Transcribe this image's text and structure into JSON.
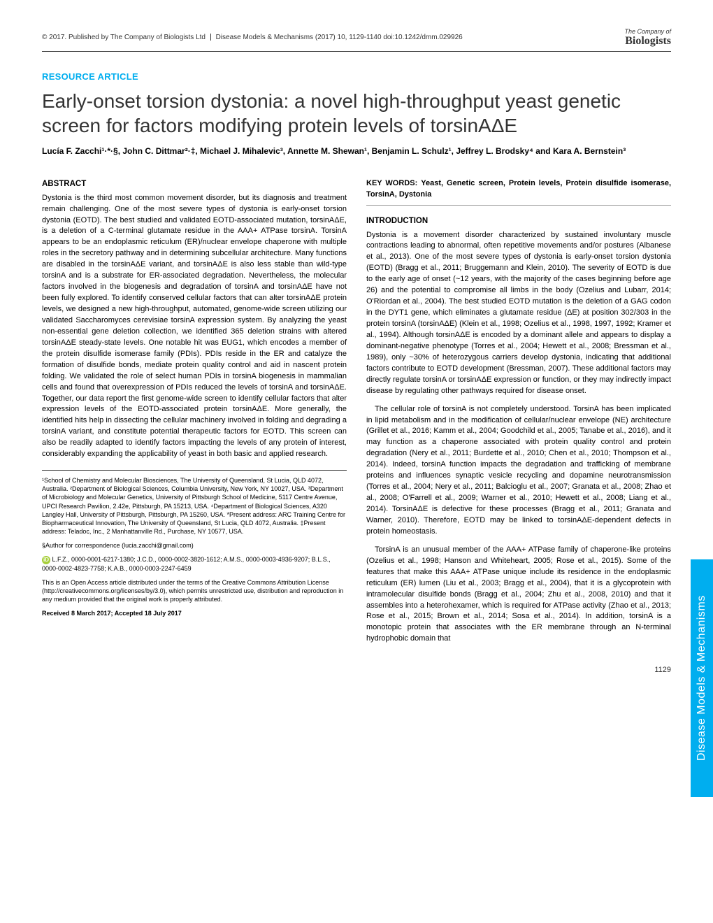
{
  "header": {
    "copyright": "© 2017. Published by The Company of Biologists Ltd",
    "journal": "Disease Models & Mechanisms (2017) 10, 1129-1140 doi:10.1242/dmm.029926",
    "logo_company": "The Company of",
    "logo_biologists": "Biologists"
  },
  "article_type": "RESOURCE ARTICLE",
  "title": "Early-onset torsion dystonia: a novel high-throughput yeast genetic screen for factors modifying protein levels of torsinAΔE",
  "authors": "Lucía F. Zacchi¹·*·§, John C. Dittmar²·‡, Michael J. Mihalevic³, Annette M. Shewan¹, Benjamin L. Schulz¹, Jeffrey L. Brodsky⁴ and Kara A. Bernstein³",
  "abstract_head": "ABSTRACT",
  "abstract": "Dystonia is the third most common movement disorder, but its diagnosis and treatment remain challenging. One of the most severe types of dystonia is early-onset torsion dystonia (EOTD). The best studied and validated EOTD-associated mutation, torsinAΔE, is a deletion of a C-terminal glutamate residue in the AAA+ ATPase torsinA. TorsinA appears to be an endoplasmic reticulum (ER)/nuclear envelope chaperone with multiple roles in the secretory pathway and in determining subcellular architecture. Many functions are disabled in the torsinAΔE variant, and torsinAΔE is also less stable than wild-type torsinA and is a substrate for ER-associated degradation. Nevertheless, the molecular factors involved in the biogenesis and degradation of torsinA and torsinAΔE have not been fully explored. To identify conserved cellular factors that can alter torsinAΔE protein levels, we designed a new high-throughput, automated, genome-wide screen utilizing our validated Saccharomyces cerevisiae torsinA expression system. By analyzing the yeast non-essential gene deletion collection, we identified 365 deletion strains with altered torsinAΔE steady-state levels. One notable hit was EUG1, which encodes a member of the protein disulfide isomerase family (PDIs). PDIs reside in the ER and catalyze the formation of disulfide bonds, mediate protein quality control and aid in nascent protein folding. We validated the role of select human PDIs in torsinA biogenesis in mammalian cells and found that overexpression of PDIs reduced the levels of torsinA and torsinAΔE. Together, our data report the first genome-wide screen to identify cellular factors that alter expression levels of the EOTD-associated protein torsinAΔE. More generally, the identified hits help in dissecting the cellular machinery involved in folding and degrading a torsinA variant, and constitute potential therapeutic factors for EOTD. This screen can also be readily adapted to identify factors impacting the levels of any protein of interest, considerably expanding the applicability of yeast in both basic and applied research.",
  "keywords_label": "KEY WORDS:",
  "keywords": "Yeast, Genetic screen, Protein levels, Protein disulfide isomerase, TorsinA, Dystonia",
  "intro_head": "INTRODUCTION",
  "intro_p1": "Dystonia is a movement disorder characterized by sustained involuntary muscle contractions leading to abnormal, often repetitive movements and/or postures (Albanese et al., 2013). One of the most severe types of dystonia is early-onset torsion dystonia (EOTD) (Bragg et al., 2011; Bruggemann and Klein, 2010). The severity of EOTD is due to the early age of onset (~12 years, with the majority of the cases beginning before age 26) and the potential to compromise all limbs in the body (Ozelius and Lubarr, 2014; O'Riordan et al., 2004). The best studied EOTD mutation is the deletion of a GAG codon in the DYT1 gene, which eliminates a glutamate residue (ΔE) at position 302/303 in the protein torsinA (torsinAΔE) (Klein et al., 1998; Ozelius et al., 1998, 1997, 1992; Kramer et al., 1994). Although torsinAΔE is encoded by a dominant allele and appears to display a dominant-negative phenotype (Torres et al., 2004; Hewett et al., 2008; Bressman et al., 1989), only ~30% of heterozygous carriers develop dystonia, indicating that additional factors contribute to EOTD development (Bressman, 2007). These additional factors may directly regulate torsinA or torsinAΔE expression or function, or they may indirectly impact disease by regulating other pathways required for disease onset.",
  "intro_p2": "The cellular role of torsinA is not completely understood. TorsinA has been implicated in lipid metabolism and in the modification of cellular/nuclear envelope (NE) architecture (Grillet et al., 2016; Kamm et al., 2004; Goodchild et al., 2005; Tanabe et al., 2016), and it may function as a chaperone associated with protein quality control and protein degradation (Nery et al., 2011; Burdette et al., 2010; Chen et al., 2010; Thompson et al., 2014). Indeed, torsinA function impacts the degradation and trafficking of membrane proteins and influences synaptic vesicle recycling and dopamine neurotransmission (Torres et al., 2004; Nery et al., 2011; Balcioglu et al., 2007; Granata et al., 2008; Zhao et al., 2008; O'Farrell et al., 2009; Warner et al., 2010; Hewett et al., 2008; Liang et al., 2014). TorsinAΔE is defective for these processes (Bragg et al., 2011; Granata and Warner, 2010). Therefore, EOTD may be linked to torsinAΔE-dependent defects in protein homeostasis.",
  "intro_p3": "TorsinA is an unusual member of the AAA+ ATPase family of chaperone-like proteins (Ozelius et al., 1998; Hanson and Whiteheart, 2005; Rose et al., 2015). Some of the features that make this AAA+ ATPase unique include its residence in the endoplasmic reticulum (ER) lumen (Liu et al., 2003; Bragg et al., 2004), that it is a glycoprotein with intramolecular disulfide bonds (Bragg et al., 2004; Zhu et al., 2008, 2010) and that it assembles into a heterohexamer, which is required for ATPase activity (Zhao et al., 2013; Rose et al., 2015; Brown et al., 2014; Sosa et al., 2014). In addition, torsinA is a monotopic protein that associates with the ER membrane through an N-terminal hydrophobic domain that",
  "affiliations": "¹School of Chemistry and Molecular Biosciences, The University of Queensland, St Lucia, QLD 4072, Australia. ²Department of Biological Sciences, Columbia University, New York, NY 10027, USA. ³Department of Microbiology and Molecular Genetics, University of Pittsburgh School of Medicine, 5117 Centre Avenue, UPCI Research Pavilion, 2.42e, Pittsburgh, PA 15213, USA. ⁴Department of Biological Sciences, A320 Langley Hall, University of Pittsburgh, Pittsburgh, PA 15260, USA. *Present address: ARC Training Centre for Biopharmaceutical Innovation, The University of Queensland, St Lucia, QLD 4072, Australia. ‡Present address: Teladoc, Inc., 2 Manhattanville Rd., Purchase, NY 10577, USA.",
  "correspondence": "§Author for correspondence (lucia.zacchi@gmail.com)",
  "orcids": "L.F.Z., 0000-0001-6217-1380; J.C.D., 0000-0002-3820-1612; A.M.S., 0000-0003-4936-9207; B.L.S., 0000-0002-4823-7758; K.A.B., 0000-0003-2247-6459",
  "license": "This is an Open Access article distributed under the terms of the Creative Commons Attribution License (http://creativecommons.org/licenses/by/3.0), which permits unrestricted use, distribution and reproduction in any medium provided that the original work is properly attributed.",
  "received": "Received 8 March 2017; Accepted 18 July 2017",
  "side_tab": "Disease Models & Mechanisms",
  "page_number": "1129",
  "colors": {
    "accent": "#00aeef",
    "text": "#333333",
    "orcid": "#a6ce39"
  }
}
